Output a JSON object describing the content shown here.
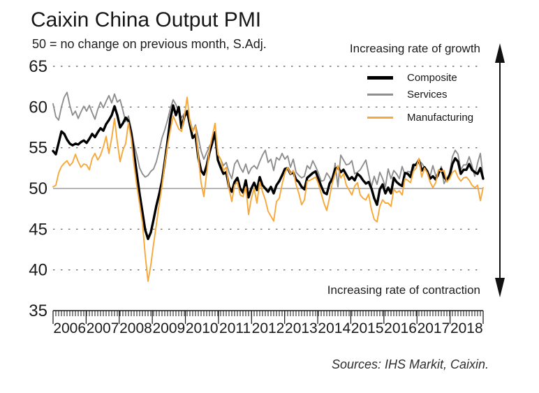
{
  "chart_data": {
    "type": "line",
    "title": "Caixin China Output PMI",
    "subtitle": "50 = no change on previous month, S.Adj.",
    "source": "Sources: IHS Markit, Caixin.",
    "annotations": {
      "growth": "Increasing rate of growth",
      "contraction": "Increasing rate of contraction"
    },
    "xlabel": "",
    "ylabel": "",
    "frequency": "monthly",
    "x_start": "2006-01",
    "x_end": "2018-11",
    "ylim": [
      35,
      65
    ],
    "baseline_value": 50,
    "grid": "horizontal dashed",
    "legend_position": "top-right-inside",
    "y_ticks": [
      65,
      60,
      55,
      50,
      45,
      40,
      35
    ],
    "year_labels": [
      "2006",
      "2007",
      "2008",
      "2009",
      "2010",
      "2011",
      "2012",
      "2013",
      "2014",
      "2015",
      "2016",
      "2017",
      "2018"
    ],
    "colors": {
      "grid": "#555555",
      "baseline": "#8a8a8a",
      "axis": "#111111",
      "text": "#1a1a1a",
      "arrow": "#111111"
    },
    "series": [
      {
        "name": "Composite",
        "color": "#000000",
        "width": 3.4,
        "values": [
          54.6,
          54.2,
          55.6,
          57.0,
          56.7,
          56.0,
          55.5,
          55.3,
          55.5,
          55.4,
          55.7,
          55.9,
          55.6,
          56.1,
          56.7,
          56.3,
          56.9,
          57.4,
          57.1,
          57.9,
          58.4,
          59.0,
          60.1,
          59.0,
          57.5,
          58.0,
          58.7,
          58.3,
          56.8,
          54.3,
          51.8,
          49.3,
          47.1,
          44.9,
          43.8,
          44.6,
          46.2,
          47.9,
          49.3,
          50.9,
          53.3,
          55.8,
          58.6,
          60.2,
          59.0,
          60.0,
          57.4,
          58.8,
          59.5,
          57.8,
          56.2,
          56.6,
          53.8,
          52.2,
          51.7,
          52.8,
          54.4,
          55.6,
          56.9,
          53.5,
          52.6,
          51.8,
          52.0,
          50.2,
          49.6,
          50.8,
          51.3,
          50.0,
          49.5,
          51.0,
          48.9,
          50.0,
          50.7,
          49.8,
          51.4,
          50.4,
          50.0,
          49.6,
          50.2,
          49.4,
          50.4,
          50.9,
          51.6,
          52.4,
          52.5,
          51.8,
          52.0,
          51.1,
          50.8,
          50.2,
          49.9,
          51.3,
          51.6,
          51.9,
          52.1,
          51.2,
          50.3,
          49.5,
          49.3,
          50.6,
          51.2,
          52.4,
          52.6,
          52.0,
          52.3,
          51.7,
          51.1,
          51.4,
          51.0,
          51.8,
          51.5,
          51.0,
          50.6,
          50.8,
          50.0,
          48.8,
          48.0,
          49.9,
          50.5,
          49.4,
          50.1,
          49.4,
          51.3,
          50.8,
          50.5,
          50.3,
          51.9,
          51.8,
          51.4,
          52.9,
          52.9,
          53.5,
          52.2,
          52.6,
          52.1,
          51.2,
          51.5,
          51.1,
          51.9,
          52.4,
          51.4,
          51.0,
          51.6,
          53.0,
          53.7,
          53.3,
          51.8,
          52.3,
          52.3,
          53.0,
          52.3,
          52.0,
          51.8,
          52.5,
          51.2
        ]
      },
      {
        "name": "Services",
        "color": "#8e8e8e",
        "width": 1.9,
        "values": [
          60.4,
          58.8,
          58.4,
          60.0,
          61.2,
          61.8,
          60.2,
          59.0,
          59.5,
          58.6,
          59.4,
          60.1,
          59.5,
          60.2,
          59.3,
          58.5,
          59.7,
          60.6,
          59.9,
          60.7,
          61.4,
          60.5,
          61.6,
          60.6,
          60.9,
          59.6,
          58.2,
          58.9,
          57.3,
          55.4,
          54.1,
          52.5,
          51.8,
          51.4,
          51.6,
          52.1,
          52.4,
          53.3,
          54.7,
          56.2,
          57.2,
          58.4,
          59.8,
          60.9,
          60.3,
          59.4,
          58.7,
          59.2,
          59.0,
          58.4,
          57.1,
          57.8,
          56.3,
          54.6,
          53.6,
          54.4,
          55.2,
          55.8,
          56.2,
          54.2,
          53.6,
          52.8,
          53.2,
          52.0,
          51.2,
          53.0,
          53.5,
          52.6,
          52.0,
          53.0,
          51.8,
          52.5,
          52.8,
          52.4,
          53.3,
          54.1,
          54.7,
          53.2,
          53.6,
          52.2,
          53.8,
          53.5,
          54.3,
          53.6,
          54.0,
          52.6,
          53.6,
          52.0,
          51.6,
          51.3,
          51.5,
          52.8,
          52.4,
          53.4,
          52.7,
          51.9,
          50.9,
          51.0,
          51.9,
          51.4,
          50.7,
          53.1,
          50.2,
          54.1,
          53.5,
          52.9,
          53.0,
          53.4,
          51.8,
          52.0,
          52.3,
          52.9,
          53.5,
          51.8,
          50.2,
          51.5,
          50.5,
          52.0,
          51.2,
          50.2,
          52.4,
          51.2,
          52.2,
          51.8,
          51.2,
          52.7,
          51.7,
          52.1,
          52.0,
          52.4,
          53.1,
          53.4,
          53.1,
          52.6,
          52.2,
          51.5,
          52.8,
          51.6,
          51.5,
          52.7,
          50.6,
          51.2,
          51.9,
          53.9,
          54.7,
          54.2,
          52.3,
          52.9,
          52.9,
          53.9,
          52.8,
          51.5,
          53.1,
          54.3,
          51.4
        ]
      },
      {
        "name": "Manufacturing",
        "color": "#f7a838",
        "width": 1.9,
        "values": [
          50.2,
          50.4,
          51.9,
          52.7,
          53.1,
          53.4,
          52.8,
          53.2,
          54.2,
          53.3,
          52.6,
          53.0,
          52.9,
          52.3,
          53.7,
          54.3,
          53.5,
          54.1,
          55.1,
          56.4,
          54.3,
          56.2,
          58.6,
          55.7,
          53.3,
          54.7,
          55.5,
          58.1,
          56.1,
          52.9,
          50.3,
          48.1,
          45.8,
          41.8,
          38.6,
          40.6,
          43.2,
          45.6,
          48.1,
          50.3,
          53.1,
          55.3,
          57.2,
          58.9,
          58.1,
          57.3,
          57.0,
          58.8,
          61.2,
          58.2,
          57.0,
          57.6,
          53.9,
          50.7,
          49.0,
          51.9,
          54.8,
          56.4,
          58.0,
          54.2,
          53.6,
          52.2,
          52.6,
          50.0,
          48.4,
          50.4,
          50.8,
          49.2,
          49.0,
          50.2,
          46.8,
          48.8,
          50.0,
          48.2,
          50.8,
          49.6,
          48.6,
          47.2,
          46.6,
          46.0,
          48.4,
          48.8,
          50.5,
          51.9,
          52.6,
          51.8,
          52.2,
          50.5,
          49.4,
          48.0,
          48.6,
          50.9,
          51.0,
          51.2,
          51.4,
          50.6,
          49.4,
          48.2,
          47.3,
          48.9,
          50.7,
          51.8,
          52.8,
          51.3,
          51.8,
          50.4,
          49.8,
          49.2,
          50.3,
          50.7,
          49.2,
          48.8,
          48.6,
          49.3,
          47.4,
          46.2,
          45.9,
          47.8,
          48.6,
          48.2,
          48.2,
          47.8,
          49.9,
          49.5,
          49.7,
          49.2,
          51.2,
          51.0,
          50.7,
          52.1,
          52.5,
          53.7,
          51.4,
          52.5,
          51.9,
          50.8,
          50.1,
          50.7,
          52.3,
          52.1,
          52.2,
          50.8,
          51.2,
          52.0,
          52.2,
          51.4,
          50.9,
          51.3,
          51.4,
          51.0,
          50.4,
          50.1,
          50.4,
          48.5,
          50.1
        ]
      }
    ]
  }
}
